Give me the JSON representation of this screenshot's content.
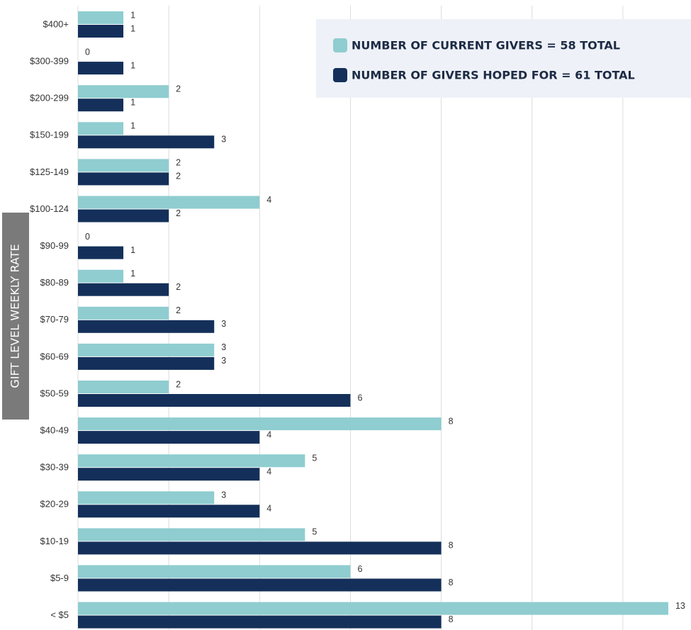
{
  "chart_data": {
    "type": "bar",
    "orientation": "horizontal",
    "y_label": "GIFT LEVEL WEEKLY RATE",
    "categories": [
      "$400+",
      "$300-399",
      "$200-299",
      "$150-199",
      "$125-149",
      "$100-124",
      "$90-99",
      "$80-89",
      "$70-79",
      "$60-69",
      "$50-59",
      "$40-49",
      "$30-39",
      "$20-29",
      "$10-19",
      "$5-9",
      "< $5"
    ],
    "series": [
      {
        "name": "NUMBER OF CURRENT GIVERS = 58 TOTAL",
        "color": "#8fcdd0",
        "values": [
          1,
          0,
          2,
          1,
          2,
          4,
          0,
          1,
          2,
          3,
          2,
          8,
          5,
          3,
          5,
          6,
          13
        ]
      },
      {
        "name": "NUMBER OF GIVERS HOPED FOR = 61 TOTAL",
        "color": "#14305a",
        "values": [
          1,
          1,
          1,
          3,
          2,
          2,
          1,
          2,
          3,
          3,
          6,
          4,
          4,
          4,
          8,
          8,
          8
        ]
      }
    ],
    "xlim": [
      0,
      13.5
    ],
    "xticks": [
      0,
      2,
      4,
      6,
      8,
      10,
      12
    ],
    "grid": true,
    "legend": "top-right"
  }
}
